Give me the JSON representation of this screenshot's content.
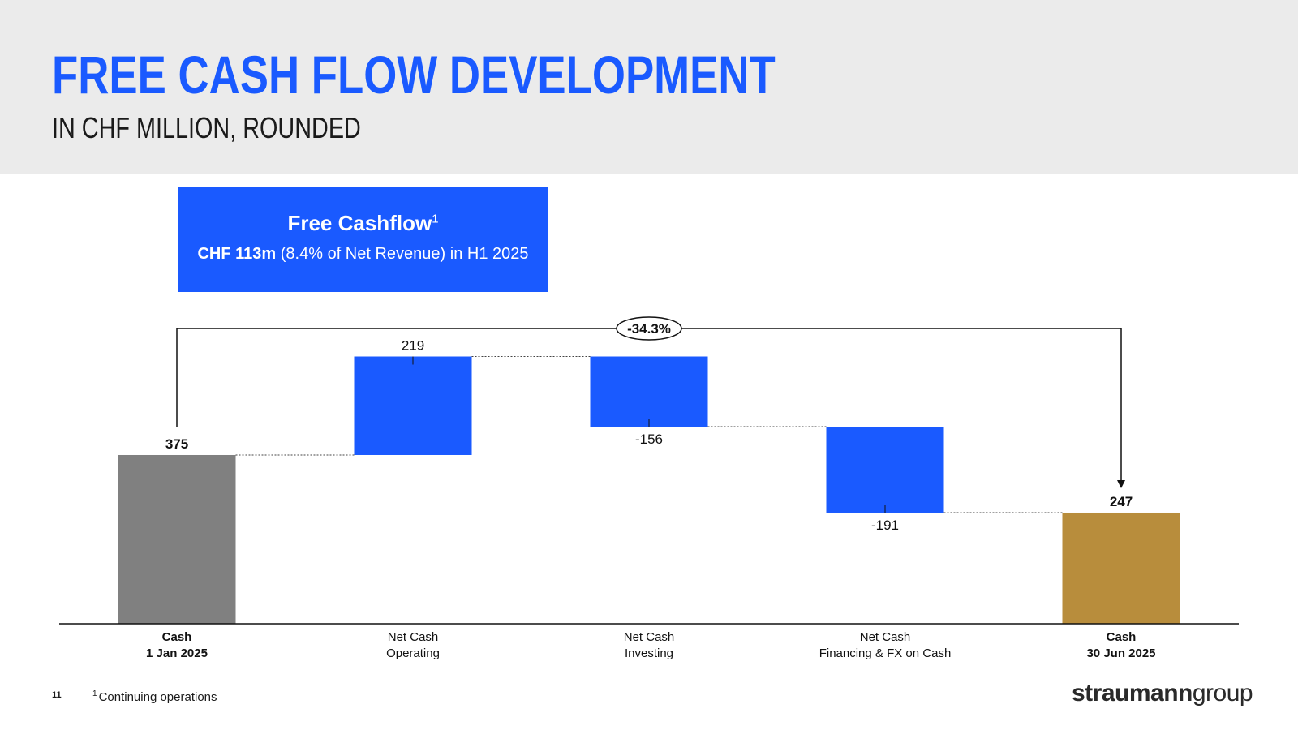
{
  "header": {
    "title": "FREE CASH FLOW DEVELOPMENT",
    "subtitle": "IN CHF MILLION, ROUNDED"
  },
  "callout": {
    "title": "Free Cashflow",
    "title_sup": "1",
    "value_bold": "CHF 113m",
    "value_rest": " (8.4% of Net Revenue) in H1 2025"
  },
  "chart_data": {
    "type": "bar",
    "subtype": "waterfall",
    "categories": [
      [
        "Cash",
        "1 Jan 2025"
      ],
      [
        "Net Cash",
        "Operating"
      ],
      [
        "Net Cash",
        "Investing"
      ],
      [
        "Net Cash",
        "Financing & FX on Cash"
      ],
      [
        "Cash",
        "30 Jun 2025"
      ]
    ],
    "values": [
      375,
      219,
      -156,
      -191,
      247
    ],
    "value_labels": [
      "375",
      "219",
      "-156",
      "-191",
      "247"
    ],
    "kinds": [
      "total",
      "delta",
      "delta",
      "delta",
      "total"
    ],
    "colors": [
      "#808080",
      "#1a5aff",
      "#1a5aff",
      "#1a5aff",
      "#b88d3c"
    ],
    "bold_labels": [
      true,
      false,
      false,
      false,
      true
    ],
    "change_label": "-34.3%",
    "ylim": [
      0,
      600
    ],
    "connectors": true
  },
  "footer": {
    "page_number": "11",
    "footnote_sup": "1",
    "footnote": "Continuing operations",
    "logo_bold": "straumann",
    "logo_light": "group"
  }
}
